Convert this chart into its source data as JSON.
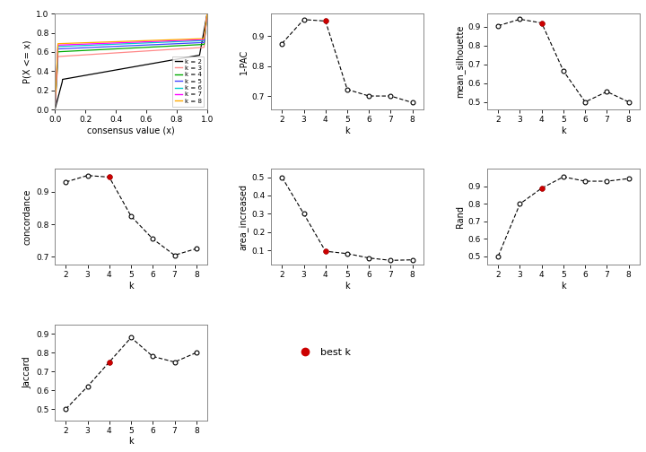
{
  "k_values": [
    2,
    3,
    4,
    5,
    6,
    7,
    8
  ],
  "one_pac": [
    0.875,
    0.955,
    0.95,
    0.722,
    0.7,
    0.7,
    0.678
  ],
  "mean_silhouette": [
    0.905,
    0.94,
    0.92,
    0.665,
    0.5,
    0.555,
    0.5
  ],
  "concordance": [
    0.93,
    0.95,
    0.945,
    0.825,
    0.755,
    0.705,
    0.725
  ],
  "area_increased": [
    0.5,
    0.3,
    0.095,
    0.082,
    0.058,
    0.045,
    0.048
  ],
  "rand": [
    0.5,
    0.8,
    0.89,
    0.955,
    0.93,
    0.93,
    0.945
  ],
  "jaccard": [
    0.5,
    0.62,
    0.75,
    0.88,
    0.78,
    0.75,
    0.8
  ],
  "best_k": 4,
  "best_k_panels": [
    true,
    true,
    true,
    true,
    true,
    true,
    true
  ],
  "cdf_colors": [
    "#000000",
    "#FF8888",
    "#00AA00",
    "#4444FF",
    "#00CCCC",
    "#FF00FF",
    "#FFAA00"
  ],
  "cdf_labels": [
    "k = 2",
    "k = 3",
    "k = 4",
    "k = 5",
    "k = 6",
    "k = 7",
    "k = 8"
  ],
  "line_color": "#000000",
  "open_circle_facecolor": "#FFFFFF",
  "best_k_color": "#CC0000",
  "background_color": "#FFFFFF",
  "axis_label_fontsize": 7,
  "tick_fontsize": 6.5,
  "title_fontsize": 8
}
